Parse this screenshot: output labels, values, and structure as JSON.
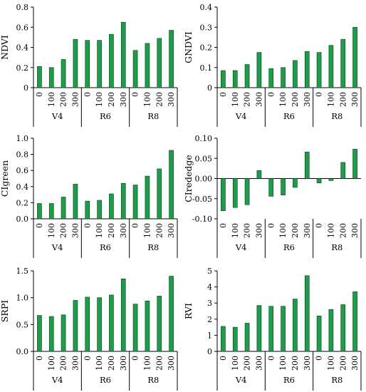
{
  "bar_color": "#1e9c4a",
  "bar_stroke": "#0b3d1c",
  "chart_data": [
    {
      "type": "bar",
      "ylabel": "NDVI",
      "ylim": [
        0,
        0.8
      ],
      "yticks": [
        "0",
        "0.2",
        "0.4",
        "0.6",
        "0.8"
      ],
      "groups": [
        {
          "label": "V4",
          "categories": [
            "0",
            "100",
            "200",
            "300"
          ],
          "values": [
            0.21,
            0.2,
            0.28,
            0.48
          ]
        },
        {
          "label": "R6",
          "categories": [
            "0",
            "100",
            "200",
            "300"
          ],
          "values": [
            0.47,
            0.47,
            0.53,
            0.65
          ]
        },
        {
          "label": "R8",
          "categories": [
            "0",
            "100",
            "200",
            "300"
          ],
          "values": [
            0.37,
            0.44,
            0.49,
            0.57
          ]
        }
      ]
    },
    {
      "type": "bar",
      "ylabel": "GNDVI",
      "ylim": [
        0,
        0.4
      ],
      "yticks": [
        "0",
        "0.1",
        "0.2",
        "0.3",
        "0.4"
      ],
      "groups": [
        {
          "label": "V4",
          "categories": [
            "0",
            "100",
            "200",
            "300"
          ],
          "values": [
            0.085,
            0.085,
            0.115,
            0.175
          ]
        },
        {
          "label": "R6",
          "categories": [
            "0",
            "100",
            "200",
            "300"
          ],
          "values": [
            0.095,
            0.1,
            0.135,
            0.18
          ]
        },
        {
          "label": "R8",
          "categories": [
            "0",
            "100",
            "200",
            "300"
          ],
          "values": [
            0.175,
            0.21,
            0.24,
            0.3
          ]
        }
      ]
    },
    {
      "type": "bar",
      "ylabel": "CIgreen",
      "ylim": [
        0,
        1.0
      ],
      "yticks": [
        "0.0",
        "0.2",
        "0.4",
        "0.6",
        "0.8",
        "1.0"
      ],
      "groups": [
        {
          "label": "V4",
          "categories": [
            "0",
            "100",
            "200",
            "300"
          ],
          "values": [
            0.19,
            0.19,
            0.27,
            0.43
          ]
        },
        {
          "label": "R6",
          "categories": [
            "0",
            "100",
            "200",
            "300"
          ],
          "values": [
            0.22,
            0.23,
            0.31,
            0.44
          ]
        },
        {
          "label": "R8",
          "categories": [
            "0",
            "100",
            "200",
            "300"
          ],
          "values": [
            0.42,
            0.53,
            0.62,
            0.85
          ]
        }
      ]
    },
    {
      "type": "bar",
      "ylabel": "CIrededge",
      "ylim": [
        -0.1,
        0.1
      ],
      "yticks": [
        "-0.10",
        "-0.05",
        "0.00",
        "0.05",
        "0.10"
      ],
      "groups": [
        {
          "label": "V4",
          "categories": [
            "0",
            "100",
            "200",
            "300"
          ],
          "values": [
            -0.08,
            -0.072,
            -0.065,
            0.02
          ]
        },
        {
          "label": "R6",
          "categories": [
            "0",
            "100",
            "200",
            "300"
          ],
          "values": [
            -0.044,
            -0.041,
            -0.022,
            0.066
          ]
        },
        {
          "label": "R8",
          "categories": [
            "0",
            "100",
            "200",
            "300"
          ],
          "values": [
            -0.011,
            -0.005,
            0.04,
            0.073
          ]
        }
      ]
    },
    {
      "type": "bar",
      "ylabel": "SRPI",
      "ylim": [
        0,
        1.5
      ],
      "yticks": [
        "0.0",
        "0.5",
        "1.0",
        "1.5"
      ],
      "groups": [
        {
          "label": "V4",
          "categories": [
            "0",
            "100",
            "200",
            "300"
          ],
          "values": [
            0.67,
            0.65,
            0.68,
            0.95
          ]
        },
        {
          "label": "R6",
          "categories": [
            "0",
            "100",
            "200",
            "300"
          ],
          "values": [
            1.01,
            1.0,
            1.05,
            1.35
          ]
        },
        {
          "label": "R8",
          "categories": [
            "0",
            "100",
            "200",
            "300"
          ],
          "values": [
            0.88,
            0.94,
            1.03,
            1.4
          ]
        }
      ]
    },
    {
      "type": "bar",
      "ylabel": "RVI",
      "ylim": [
        0,
        5
      ],
      "yticks": [
        "0",
        "1",
        "2",
        "3",
        "4",
        "5"
      ],
      "groups": [
        {
          "label": "V4",
          "categories": [
            "0",
            "100",
            "200",
            "300"
          ],
          "values": [
            1.55,
            1.5,
            1.75,
            2.85
          ]
        },
        {
          "label": "R6",
          "categories": [
            "0",
            "100",
            "200",
            "300"
          ],
          "values": [
            2.8,
            2.8,
            3.25,
            4.7
          ]
        },
        {
          "label": "R8",
          "categories": [
            "0",
            "100",
            "200",
            "300"
          ],
          "values": [
            2.2,
            2.6,
            2.9,
            3.7
          ]
        }
      ]
    }
  ]
}
